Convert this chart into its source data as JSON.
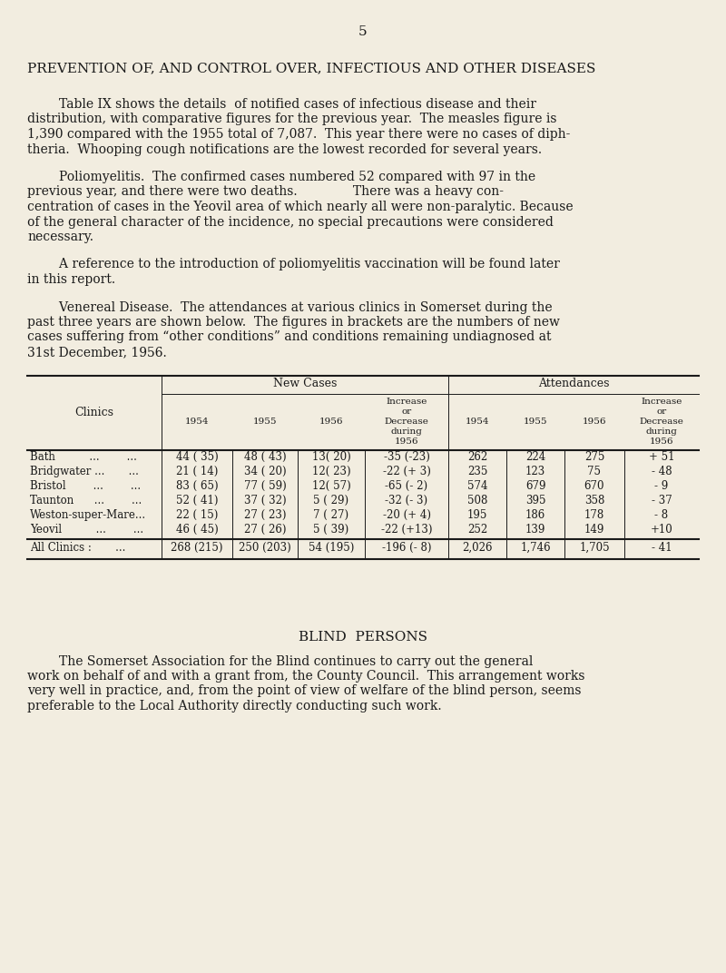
{
  "page_number": "5",
  "bg_color": "#f2ede0",
  "text_color": "#1a1a1a",
  "heading": "PREVENTION OF, AND CONTROL OVER, INFECTIOUS AND OTHER DISEASES",
  "p1_lines": [
    "        Table IX shows the details  of notified cases of infectious disease and their",
    "distribution, with comparative figures for the previous year.  The measles figure is",
    "1,390 compared with the 1955 total of 7,087.  This year there were no cases of diph-",
    "theria.  Whooping cough notifications are the lowest recorded for several years."
  ],
  "p2_lines": [
    "        Poliomyelitis.  The confirmed cases numbered 52 compared with 97 in the",
    "previous year, and there were two deaths.              There was a heavy con-",
    "centration of cases in the Yeovil area of which nearly all were non-paralytic. Because",
    "of the general character of the incidence, no special precautions were considered",
    "necessary."
  ],
  "p3_lines": [
    "        A reference to the introduction of poliomyelitis vaccination will be found later",
    "in this report."
  ],
  "p4_lines": [
    "        Venereal Disease.  The attendances at various clinics in Somerset during the",
    "past three years are shown below.  The figures in brackets are the numbers of new",
    "cases suffering from “other conditions” and conditions remaining undiagnosed at",
    "31st December, 1956."
  ],
  "table": {
    "rows": [
      {
        "clinic": "Bath          ...        ...",
        "nc1954": "44 ( 35)",
        "nc1955": "48 ( 43)",
        "nc1956": "13( 20)",
        "nc_inc": "-35 (-23)",
        "att1954": "262",
        "att1955": "224",
        "att1956": "275",
        "att_inc": "+ 51"
      },
      {
        "clinic": "Bridgwater ...       ...",
        "nc1954": "21 ( 14)",
        "nc1955": "34 ( 20)",
        "nc1956": "12( 23)",
        "nc_inc": "-22 (+ 3)",
        "att1954": "235",
        "att1955": "123",
        "att1956": "75",
        "att_inc": "- 48"
      },
      {
        "clinic": "Bristol        ...        ...",
        "nc1954": "83 ( 65)",
        "nc1955": "77 ( 59)",
        "nc1956": "12( 57)",
        "nc_inc": "-65 (- 2)",
        "att1954": "574",
        "att1955": "679",
        "att1956": "670",
        "att_inc": "- 9"
      },
      {
        "clinic": "Taunton      ...        ...",
        "nc1954": "52 ( 41)",
        "nc1955": "37 ( 32)",
        "nc1956": "5 ( 29)",
        "nc_inc": "-32 (- 3)",
        "att1954": "508",
        "att1955": "395",
        "att1956": "358",
        "att_inc": "- 37"
      },
      {
        "clinic": "Weston-super-Mare...",
        "nc1954": "22 ( 15)",
        "nc1955": "27 ( 23)",
        "nc1956": "7 ( 27)",
        "nc_inc": "-20 (+ 4)",
        "att1954": "195",
        "att1955": "186",
        "att1956": "178",
        "att_inc": "- 8"
      },
      {
        "clinic": "Yeovil          ...        ...",
        "nc1954": "46 ( 45)",
        "nc1955": "27 ( 26)",
        "nc1956": "5 ( 39)",
        "nc_inc": "-22 (+13)",
        "att1954": "252",
        "att1955": "139",
        "att1956": "149",
        "att_inc": "+10"
      }
    ],
    "totals": {
      "clinic": "All Clinics :       ...",
      "nc1954": "268 (215)",
      "nc1955": "250 (203)",
      "nc1956": "54 (195)",
      "nc_inc": "-196 (- 8)",
      "att1954": "2,026",
      "att1955": "1,746",
      "att1956": "1,705",
      "att_inc": "- 41"
    }
  },
  "blind_heading": "BLIND  PERSONS",
  "blind_lines": [
    "        The Somerset Association for the Blind continues to carry out the general",
    "work on behalf of and with a grant from, the County Council.  This arrangement works",
    "very well in practice, and, from the point of view of welfare of the blind person, seems",
    "preferable to the Local Authority directly conducting such work."
  ]
}
